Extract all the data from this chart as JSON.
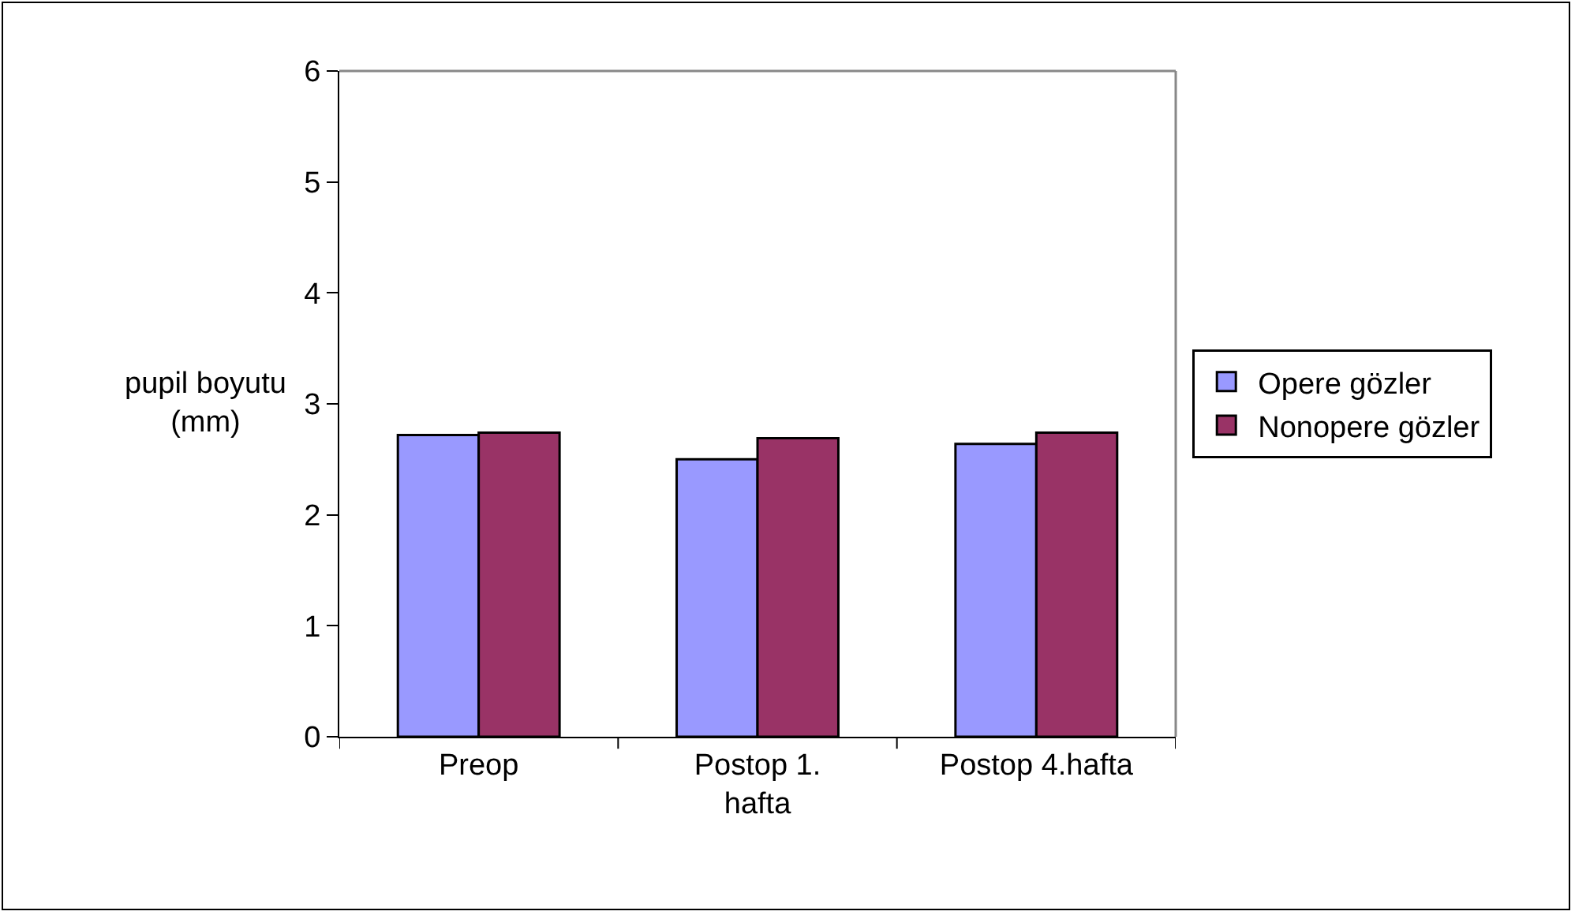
{
  "chart_data": {
    "type": "bar",
    "ylabel": "pupil boyutu\n(mm)",
    "categories": [
      "Preop",
      "Postop 1.\nhafta",
      "Postop 4.hafta"
    ],
    "series": [
      {
        "name": "Opere gözler",
        "color": "#9999ff",
        "values": [
          2.72,
          2.5,
          2.64
        ]
      },
      {
        "name": "Nonopere gözler",
        "color": "#993366",
        "values": [
          2.74,
          2.69,
          2.74
        ]
      }
    ],
    "ylim": [
      0,
      6
    ],
    "yticks": [
      0,
      1,
      2,
      3,
      4,
      5,
      6
    ],
    "grid": false,
    "legend": "right"
  }
}
